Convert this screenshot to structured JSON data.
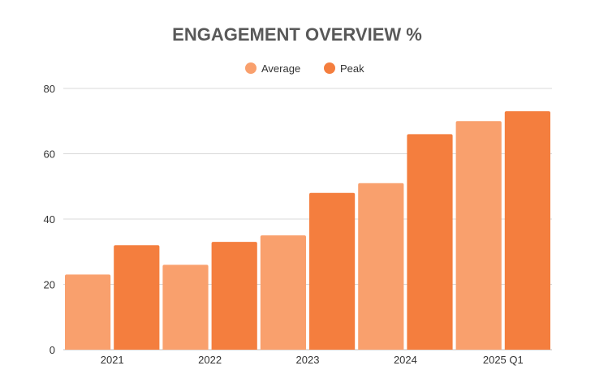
{
  "chart_data": {
    "type": "bar",
    "title": "ENGAGEMENT OVERVIEW %",
    "xlabel": "",
    "ylabel": "",
    "categories": [
      "2021",
      "2022",
      "2023",
      "2024",
      "2025 Q1"
    ],
    "series": [
      {
        "name": "Average",
        "color": "#F9A06D",
        "values": [
          23,
          26,
          35,
          51,
          70
        ]
      },
      {
        "name": "Peak",
        "color": "#F47E3E",
        "values": [
          32,
          33,
          48,
          66,
          73
        ]
      }
    ],
    "ylim": [
      0,
      80
    ],
    "yticks": [
      0,
      20,
      40,
      60,
      80
    ],
    "grid": true,
    "legend_position": "top-center"
  }
}
